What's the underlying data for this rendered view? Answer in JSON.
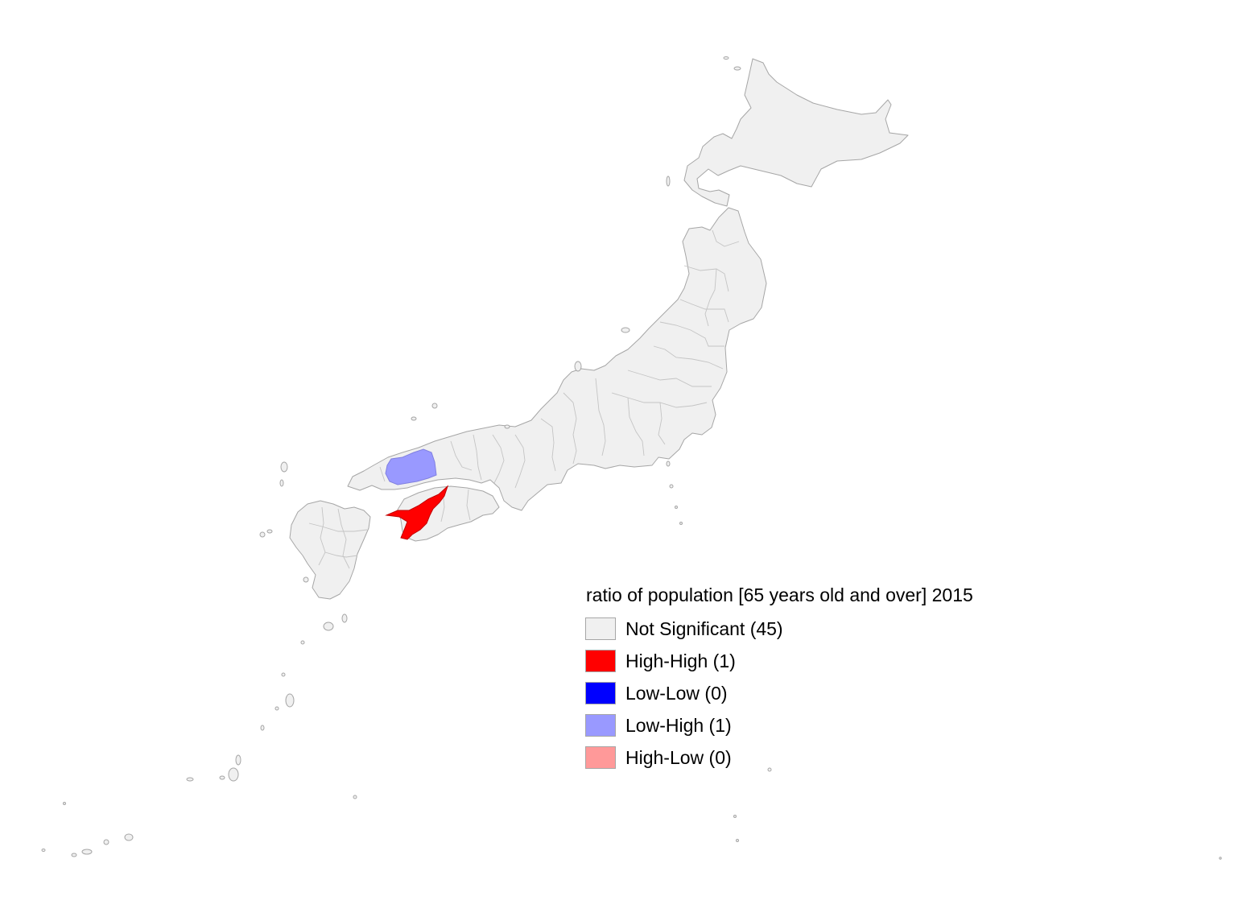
{
  "legend": {
    "title": "ratio of population [65 years old and over] 2015",
    "items": [
      {
        "label": "Not Significant (45)",
        "color": "#f0f0f0"
      },
      {
        "label": "High-High (1)",
        "color": "#ff0000"
      },
      {
        "label": "Low-Low (0)",
        "color": "#0000ff"
      },
      {
        "label": "Low-High (1)",
        "color": "#9999ff"
      },
      {
        "label": "High-Low (0)",
        "color": "#ff9999"
      }
    ]
  },
  "map": {
    "regions": [
      {
        "name": "Not Significant prefectures",
        "cluster": "Not Significant"
      },
      {
        "name": "Ehime",
        "cluster": "High-High"
      },
      {
        "name": "Hiroshima",
        "cluster": "Low-High"
      }
    ]
  }
}
